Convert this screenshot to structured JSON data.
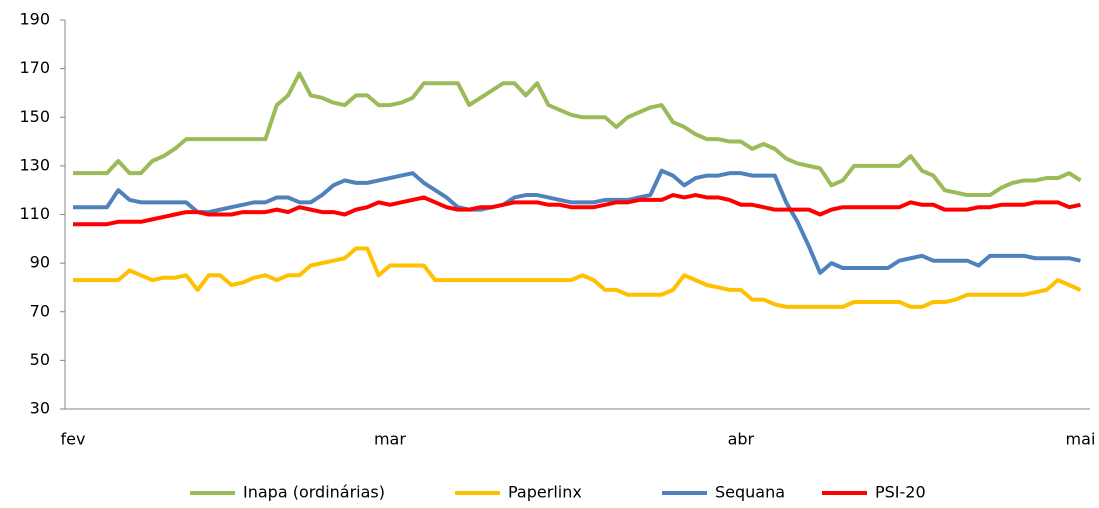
{
  "chart_data": {
    "type": "line",
    "categories": [
      "fev",
      null,
      null,
      null,
      null,
      null,
      null,
      null,
      null,
      null,
      null,
      null,
      null,
      null,
      null,
      null,
      null,
      null,
      null,
      null,
      null,
      null,
      null,
      null,
      null,
      null,
      null,
      null,
      "mar",
      null,
      null,
      null,
      null,
      null,
      null,
      null,
      null,
      null,
      null,
      null,
      null,
      null,
      null,
      null,
      null,
      null,
      null,
      null,
      null,
      null,
      null,
      null,
      null,
      null,
      null,
      null,
      null,
      null,
      null,
      "abr",
      null,
      null,
      null,
      null,
      null,
      null,
      null,
      null,
      null,
      null,
      null,
      null,
      null,
      null,
      null,
      null,
      null,
      null,
      null,
      null,
      null,
      null,
      null,
      null,
      null,
      null,
      null,
      null,
      null,
      "mai"
    ],
    "series": [
      {
        "name": "Inapa (ordinárias)",
        "color": "#9bbb59",
        "values": [
          127,
          127,
          127,
          127,
          132,
          127,
          127,
          132,
          134,
          137,
          141,
          141,
          141,
          141,
          141,
          141,
          141,
          141,
          155,
          159,
          168,
          159,
          158,
          156,
          155,
          159,
          159,
          155,
          155,
          156,
          158,
          164,
          164,
          164,
          164,
          155,
          158,
          161,
          164,
          164,
          159,
          164,
          155,
          153,
          151,
          150,
          150,
          150,
          146,
          150,
          152,
          154,
          155,
          148,
          146,
          143,
          141,
          141,
          140,
          140,
          137,
          139,
          137,
          133,
          131,
          130,
          129,
          122,
          124,
          130,
          130,
          130,
          130,
          130,
          134,
          128,
          126,
          120,
          119,
          118,
          118,
          118,
          121,
          123,
          124,
          124,
          125,
          125,
          127,
          124
        ]
      },
      {
        "name": "Paperlinx",
        "color": "#ffc000",
        "values": [
          83,
          83,
          83,
          83,
          83,
          87,
          85,
          83,
          84,
          84,
          85,
          79,
          85,
          85,
          81,
          82,
          84,
          85,
          83,
          85,
          85,
          89,
          90,
          91,
          92,
          96,
          96,
          85,
          89,
          89,
          89,
          89,
          83,
          83,
          83,
          83,
          83,
          83,
          83,
          83,
          83,
          83,
          83,
          83,
          83,
          85,
          83,
          79,
          79,
          77,
          77,
          77,
          77,
          79,
          85,
          83,
          81,
          80,
          79,
          79,
          75,
          75,
          73,
          72,
          72,
          72,
          72,
          72,
          72,
          74,
          74,
          74,
          74,
          74,
          72,
          72,
          74,
          74,
          75,
          77,
          77,
          77,
          77,
          77,
          77,
          78,
          79,
          83,
          81,
          79
        ]
      },
      {
        "name": "Sequana",
        "color": "#4f81bd",
        "values": [
          113,
          113,
          113,
          113,
          120,
          116,
          115,
          115,
          115,
          115,
          115,
          111,
          111,
          112,
          113,
          114,
          115,
          115,
          117,
          117,
          115,
          115,
          118,
          122,
          124,
          123,
          123,
          124,
          125,
          126,
          127,
          123,
          120,
          117,
          113,
          112,
          112,
          113,
          114,
          117,
          118,
          118,
          117,
          116,
          115,
          115,
          115,
          116,
          116,
          116,
          117,
          118,
          128,
          126,
          122,
          125,
          126,
          126,
          127,
          127,
          126,
          126,
          126,
          115,
          107,
          97,
          86,
          90,
          88,
          88,
          88,
          88,
          88,
          91,
          92,
          93,
          91,
          91,
          91,
          91,
          89,
          93,
          93,
          93,
          93,
          92,
          92,
          92,
          92,
          91
        ]
      },
      {
        "name": "PSI-20",
        "color": "#ff0000",
        "values": [
          106,
          106,
          106,
          106,
          107,
          107,
          107,
          108,
          109,
          110,
          111,
          111,
          110,
          110,
          110,
          111,
          111,
          111,
          112,
          111,
          113,
          112,
          111,
          111,
          110,
          112,
          113,
          115,
          114,
          115,
          116,
          117,
          115,
          113,
          112,
          112,
          113,
          113,
          114,
          115,
          115,
          115,
          114,
          114,
          113,
          113,
          113,
          114,
          115,
          115,
          116,
          116,
          116,
          118,
          117,
          118,
          117,
          117,
          116,
          114,
          114,
          113,
          112,
          112,
          112,
          112,
          110,
          112,
          113,
          113,
          113,
          113,
          113,
          113,
          115,
          114,
          114,
          112,
          112,
          112,
          113,
          113,
          114,
          114,
          114,
          115,
          115,
          115,
          113,
          114
        ]
      }
    ],
    "ylim": [
      30,
      190
    ],
    "yticks": [
      30,
      50,
      70,
      90,
      110,
      130,
      150,
      170,
      190
    ],
    "grid": false,
    "legend": "bottom"
  }
}
